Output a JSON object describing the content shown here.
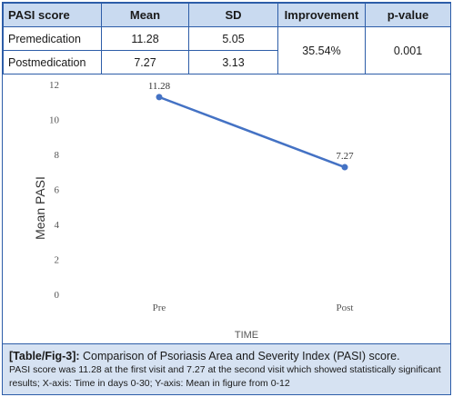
{
  "table": {
    "headers": [
      "PASI score",
      "Mean",
      "SD",
      "Improvement",
      "p-value"
    ],
    "rows": [
      {
        "label": "Premedication",
        "mean": "11.28",
        "sd": "5.05"
      },
      {
        "label": "Postmedication",
        "mean": "7.27",
        "sd": "3.13"
      }
    ],
    "improvement": "35.54%",
    "p_value": "0.001"
  },
  "chart_data": {
    "type": "line",
    "categories": [
      "Pre",
      "Post"
    ],
    "series": [
      {
        "values": [
          11.28,
          7.27
        ]
      }
    ],
    "data_labels": [
      "11.28",
      "7.27"
    ],
    "xlabel": "TIME",
    "ylabel": "Mean PASI",
    "ylim": [
      0,
      12
    ],
    "yticks": [
      0,
      2,
      4,
      6,
      8,
      10,
      12
    ],
    "grid": false,
    "line_color": "#4472c4"
  },
  "caption": {
    "tag": "[Table/Fig-3]:",
    "title": "Comparison of Psoriasis Area and Severity Index (PASI) score.",
    "body": "PASI score was 11.28 at the first visit and 7.27 at the second visit which showed statistically significant results; X-axis: Time in days 0-30; Y-axis: Mean in figure from 0-12"
  }
}
